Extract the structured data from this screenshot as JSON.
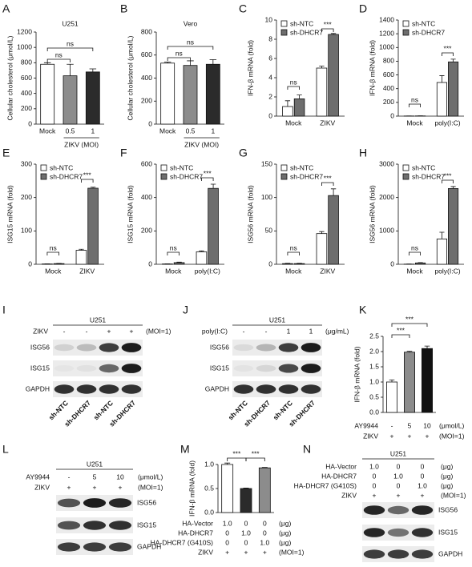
{
  "chart_data": [
    {
      "type": "bar",
      "panel": "A",
      "title": "U251",
      "ylabel": "Cellular cholesterol (μmol/L)",
      "ylim": [
        0,
        1200
      ],
      "yticks": [
        0,
        200,
        400,
        600,
        800,
        1000,
        1200
      ],
      "categories": [
        "Mock",
        "0.5",
        "1"
      ],
      "group_label": "ZIKV (MOI)",
      "values": [
        780,
        630,
        680
      ],
      "errors": [
        20,
        150,
        40
      ],
      "colors": [
        "#ffffff",
        "#8c8c8c",
        "#2b2b2b"
      ],
      "annotations": [
        "ns",
        "ns"
      ]
    },
    {
      "type": "bar",
      "panel": "B",
      "title": "Vero",
      "ylabel": "Cellular cholesterol (μmol/L)",
      "ylim": [
        0,
        800
      ],
      "yticks": [
        0,
        200,
        400,
        600,
        800
      ],
      "categories": [
        "Mock",
        "0.5",
        "1"
      ],
      "group_label": "ZIKV (MOI)",
      "values": [
        530,
        510,
        520
      ],
      "errors": [
        10,
        40,
        40
      ],
      "colors": [
        "#ffffff",
        "#8c8c8c",
        "#2b2b2b"
      ],
      "annotations": [
        "ns",
        "ns"
      ]
    },
    {
      "type": "grouped",
      "panel": "C",
      "ylabel": "IFN-β mRNA (fold)",
      "ylim": [
        0,
        10
      ],
      "yticks": [
        0,
        2,
        4,
        6,
        8,
        10
      ],
      "categories": [
        "Mock",
        "ZIKV"
      ],
      "series": [
        {
          "name": "sh-NTC",
          "color": "#ffffff",
          "values": [
            1.0,
            5.0
          ],
          "errors": [
            0.6,
            0.2
          ]
        },
        {
          "name": "sh-DHCR7",
          "color": "#6e6e6e",
          "values": [
            1.8,
            8.5
          ],
          "errors": [
            0.4,
            0.1
          ]
        }
      ],
      "annotations": [
        "ns",
        "***"
      ]
    },
    {
      "type": "grouped",
      "panel": "D",
      "ylabel": "IFN-β mRNA (fold)",
      "ylim": [
        0,
        1400
      ],
      "yticks": [
        0,
        200,
        400,
        600,
        800,
        1000,
        1200,
        1400
      ],
      "categories": [
        "Mock",
        "poly(I:C)"
      ],
      "series": [
        {
          "name": "sh-NTC",
          "color": "#ffffff",
          "values": [
            2,
            490
          ],
          "errors": [
            1,
            100
          ]
        },
        {
          "name": "sh-DHCR7",
          "color": "#6e6e6e",
          "values": [
            3,
            790
          ],
          "errors": [
            1,
            40
          ]
        }
      ],
      "annotations": [
        "ns",
        "***"
      ]
    },
    {
      "type": "grouped",
      "panel": "E",
      "ylabel": "ISG15 mRNA (fold)",
      "ylim": [
        0,
        300
      ],
      "yticks": [
        0,
        100,
        200,
        300
      ],
      "categories": [
        "Mock",
        "ZIKV"
      ],
      "series": [
        {
          "name": "sh-NTC",
          "color": "#ffffff",
          "values": [
            1,
            42
          ],
          "errors": [
            0.5,
            3
          ]
        },
        {
          "name": "sh-DHCR7",
          "color": "#6e6e6e",
          "values": [
            2,
            228
          ],
          "errors": [
            0.5,
            3
          ]
        }
      ],
      "annotations": [
        "ns",
        "***"
      ]
    },
    {
      "type": "grouped",
      "panel": "F",
      "ylabel": "ISG15 mRNA (fold)",
      "ylim": [
        0,
        600
      ],
      "yticks": [
        0,
        200,
        400,
        600
      ],
      "categories": [
        "Mock",
        "poly(I:C)"
      ],
      "series": [
        {
          "name": "sh-NTC",
          "color": "#ffffff",
          "values": [
            2,
            75
          ],
          "errors": [
            1,
            5
          ]
        },
        {
          "name": "sh-DHCR7",
          "color": "#6e6e6e",
          "values": [
            10,
            455
          ],
          "errors": [
            3,
            25
          ]
        }
      ],
      "annotations": [
        "ns",
        "***"
      ]
    },
    {
      "type": "grouped",
      "panel": "G",
      "ylabel": "ISG56 mRNA (fold)",
      "ylim": [
        0,
        150
      ],
      "yticks": [
        0,
        50,
        100,
        150
      ],
      "categories": [
        "Mock",
        "ZIKV"
      ],
      "series": [
        {
          "name": "sh-NTC",
          "color": "#ffffff",
          "values": [
            1,
            46
          ],
          "errors": [
            0.5,
            3
          ]
        },
        {
          "name": "sh-DHCR7",
          "color": "#6e6e6e",
          "values": [
            1,
            103
          ],
          "errors": [
            0.5,
            10
          ]
        }
      ],
      "annotations": [
        "ns",
        "***"
      ]
    },
    {
      "type": "grouped",
      "panel": "H",
      "ylabel": "ISG56 mRNA (fold)",
      "ylim": [
        0,
        3000
      ],
      "yticks": [
        0,
        1000,
        2000,
        3000
      ],
      "categories": [
        "Mock",
        "poly(I:C)"
      ],
      "series": [
        {
          "name": "sh-NTC",
          "color": "#ffffff",
          "values": [
            5,
            760
          ],
          "errors": [
            3,
            200
          ]
        },
        {
          "name": "sh-DHCR7",
          "color": "#6e6e6e",
          "values": [
            40,
            2270
          ],
          "errors": [
            10,
            60
          ]
        }
      ],
      "annotations": [
        "ns",
        "***"
      ]
    },
    {
      "type": "bar",
      "panel": "K",
      "ylabel": "IFN-β mRNA (fold)",
      "ylim": [
        0,
        2.5
      ],
      "yticks": [
        {
          "value": 0,
          "label": "0.0"
        },
        {
          "value": 0.5,
          "label": "0.5"
        },
        {
          "value": 1,
          "label": "1.0"
        },
        {
          "value": 1.5,
          "label": "1.5"
        },
        {
          "value": 2,
          "label": "2.0"
        },
        {
          "value": 2.5,
          "label": "2.5"
        }
      ],
      "values": [
        1.0,
        1.98,
        2.1
      ],
      "errors": [
        0.07,
        0.03,
        0.08
      ],
      "colors": [
        "#ffffff",
        "#8c8c8c",
        "#111111"
      ],
      "annotations": [
        "***",
        "***"
      ],
      "conditions": [
        {
          "label": "AY9944",
          "values": [
            "-",
            "5",
            "10"
          ],
          "unit": "(μmol/L)"
        },
        {
          "label": "ZIKV",
          "values": [
            "+",
            "+",
            "+"
          ],
          "unit": "(MOI=1)"
        }
      ]
    },
    {
      "type": "bar",
      "panel": "M",
      "ylabel": "IFN-β mRNA (fold)",
      "ylim": [
        0,
        1.0
      ],
      "yticks": [
        {
          "value": 0,
          "label": "0.0"
        },
        {
          "value": 0.5,
          "label": "0.5"
        },
        {
          "value": 1,
          "label": "1.0"
        }
      ],
      "values": [
        1.0,
        0.5,
        0.93
      ],
      "errors": [
        0.03,
        0.01,
        0.01
      ],
      "colors": [
        "#ffffff",
        "#2b2b2b",
        "#8c8c8c"
      ],
      "annotations": [
        "***",
        "***"
      ],
      "conditions": [
        {
          "label": "HA-Vector",
          "values": [
            "1.0",
            "0",
            "0"
          ],
          "unit": "(μg)"
        },
        {
          "label": "HA-DHCR7",
          "values": [
            "0",
            "1.0",
            "0"
          ],
          "unit": "(μg)"
        },
        {
          "label": "HA-DHCR7 (G410S)",
          "values": [
            "0",
            "0",
            "1.0"
          ],
          "unit": "(μg)"
        },
        {
          "label": "ZIKV",
          "values": [
            "+",
            "+",
            "+"
          ],
          "unit": "(MOI=1)"
        }
      ]
    }
  ],
  "blots": [
    {
      "panel": "I",
      "title": "U251",
      "treatments": [
        {
          "label": "ZIKV",
          "values": [
            "-",
            "-",
            "+",
            "+"
          ],
          "unit": "(MOI=1)"
        }
      ],
      "bands": [
        "ISG56",
        "ISG15",
        "GAPDH"
      ],
      "lanes": [
        "sh-NTC",
        "sh-DHCR7",
        "sh-NTC",
        "sh-DHCR7"
      ]
    },
    {
      "panel": "J",
      "title": "U251",
      "treatments": [
        {
          "label": "poly(I:C)",
          "values": [
            "-",
            "-",
            "1",
            "1"
          ],
          "unit": "(μg/mL)"
        }
      ],
      "bands": [
        "ISG56",
        "ISG15",
        "GAPDH"
      ],
      "lanes": [
        "sh-NTC",
        "sh-DHCR7",
        "sh-NTC",
        "sh-DHCR7"
      ]
    },
    {
      "panel": "L",
      "title": "U251",
      "treatments": [
        {
          "label": "AY9944",
          "values": [
            "-",
            "5",
            "10"
          ],
          "unit": "(μmol/L)"
        },
        {
          "label": "ZIKV",
          "values": [
            "+",
            "+",
            "+"
          ],
          "unit": "(MOI=1)"
        }
      ],
      "bands": [
        "ISG56",
        "ISG15",
        "GAPDH"
      ]
    },
    {
      "panel": "N",
      "title": "U251",
      "treatments": [
        {
          "label": "HA-Vector",
          "values": [
            "1.0",
            "0",
            "0"
          ],
          "unit": "(μg)"
        },
        {
          "label": "HA-DHCR7",
          "values": [
            "0",
            "1.0",
            "0"
          ],
          "unit": "(μg)"
        },
        {
          "label": "HA-DHCR7 (G410S)",
          "values": [
            "0",
            "0",
            "1.0"
          ],
          "unit": "(μg)"
        },
        {
          "label": "ZIKV",
          "values": [
            "+",
            "+",
            "+"
          ],
          "unit": "(MOI=1)"
        }
      ],
      "bands": [
        "ISG56",
        "ISG15",
        "GAPDH"
      ]
    }
  ]
}
